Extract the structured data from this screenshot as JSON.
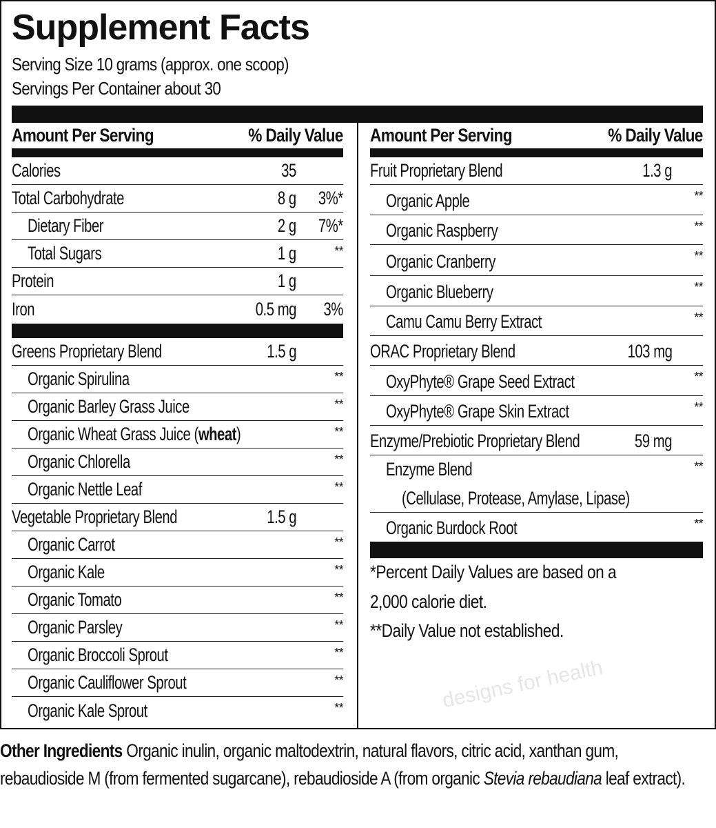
{
  "title": "Supplement Facts",
  "serving_size": "Serving Size 10 grams (approx. one scoop)",
  "servings_per_container": "Servings Per Container about 30",
  "watermark": "designs for health",
  "header": {
    "amount": "Amount Per Serving",
    "dv": "% Daily Value"
  },
  "left_rows": [
    {
      "name": "Calories",
      "amount": "35",
      "dv": ""
    },
    {
      "name": "Total Carbohydrate",
      "amount": "8 g",
      "dv": "3%*"
    },
    {
      "name": "Dietary Fiber",
      "sub": true,
      "amount": "2 g",
      "dv": "7%*"
    },
    {
      "name": "Total Sugars",
      "sub": true,
      "amount": "1 g",
      "star": "**"
    },
    {
      "name": "Protein",
      "amount": "1 g",
      "dv": ""
    },
    {
      "name": "Iron",
      "amount": "0.5 mg",
      "dv": "3%"
    }
  ],
  "left_rows2": [
    {
      "name": "Greens Proprietary Blend",
      "amount": "1.5 g"
    },
    {
      "name": "Organic Spirulina",
      "sub": true,
      "star": "**"
    },
    {
      "name": "Organic Barley Grass Juice",
      "sub": true,
      "star": "**"
    },
    {
      "name": "Organic Wheat Grass Juice (",
      "bold": "wheat",
      "suffix": ")",
      "sub": true,
      "star": "**"
    },
    {
      "name": "Organic Chlorella",
      "sub": true,
      "star": "**"
    },
    {
      "name": "Organic Nettle Leaf",
      "sub": true,
      "star": "**"
    },
    {
      "name": "Vegetable Proprietary Blend",
      "amount": "1.5 g"
    },
    {
      "name": "Organic Carrot",
      "sub": true,
      "star": "**"
    },
    {
      "name": "Organic Kale",
      "sub": true,
      "star": "**"
    },
    {
      "name": "Organic Tomato",
      "sub": true,
      "star": "**"
    },
    {
      "name": "Organic Parsley",
      "sub": true,
      "star": "**"
    },
    {
      "name": "Organic Broccoli Sprout",
      "sub": true,
      "star": "**"
    },
    {
      "name": "Organic Cauliflower Sprout",
      "sub": true,
      "star": "**"
    },
    {
      "name": "Organic Kale Sprout",
      "sub": true,
      "star": "**"
    }
  ],
  "right_rows": [
    {
      "name": "Fruit Proprietary Blend",
      "amount": "1.3 g"
    },
    {
      "name": "Organic Apple",
      "sub": true,
      "star": "**"
    },
    {
      "name": "Organic Raspberry",
      "sub": true,
      "star": "**"
    },
    {
      "name": "Organic Cranberry",
      "sub": true,
      "star": "**"
    },
    {
      "name": "Organic Blueberry",
      "sub": true,
      "star": "**"
    },
    {
      "name": "Camu Camu Berry Extract",
      "sub": true,
      "star": "**"
    },
    {
      "name": "ORAC Proprietary Blend",
      "amount": "103 mg"
    },
    {
      "name": "OxyPhyte® Grape Seed Extract",
      "sub": true,
      "star": "**"
    },
    {
      "name": "OxyPhyte® Grape Skin Extract",
      "sub": true,
      "star": "**"
    },
    {
      "name": "Enzyme/Prebiotic Proprietary Blend",
      "amount": "59 mg"
    },
    {
      "name": "Enzyme Blend",
      "note": "(Cellulase, Protease, Amylase, Lipase)",
      "sub": true,
      "star": "**"
    },
    {
      "name": "Organic Burdock Root",
      "sub": true,
      "star": "**"
    }
  ],
  "footnotes": [
    "*Percent Daily Values are based on a",
    "2,000 calorie diet.",
    "**Daily Value not established."
  ],
  "other_ingredients": {
    "label": "Other Ingredients",
    "text": " Organic inulin, organic maltodextrin, natural flavors, citric acid, xanthan gum, rebaudioside M (from fermented sugarcane), rebaudioside A (from organic ",
    "italic": "Stevia rebaudiana",
    "end": " leaf extract)."
  }
}
